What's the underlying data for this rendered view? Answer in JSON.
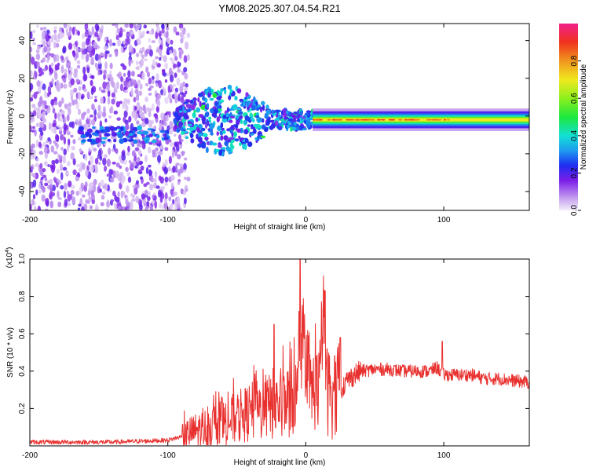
{
  "title": "YM08.2025.307.04.54.R21",
  "chart_data": [
    {
      "type": "heatmap",
      "xlabel": "Height of straight line (km)",
      "ylabel": "Frequency (Hz)",
      "xlim": [
        -200,
        162
      ],
      "ylim": [
        -50,
        49
      ],
      "xticks": [
        -200,
        -100,
        0,
        100
      ],
      "yticks": [
        -40,
        -20,
        0,
        20,
        40
      ],
      "xtick_labels": [
        "-200",
        "-100",
        "0",
        "100"
      ],
      "ytick_labels": [
        "-40",
        "-20",
        "0",
        "20",
        "40"
      ],
      "colorbar": {
        "label": "Normalized spectral amplitude",
        "range": [
          0,
          1
        ],
        "ticks": [
          0.0,
          0.2,
          0.4,
          0.6,
          0.8
        ],
        "tick_labels": [
          "0.0",
          "0.2",
          "0.4",
          "0.6",
          "0.8"
        ]
      },
      "features": [
        {
          "name": "noise region",
          "x_range": [
            -200,
            -85
          ],
          "freq_range": [
            -50,
            49
          ],
          "amplitude": 0.08
        },
        {
          "name": "early trail",
          "x_range": [
            -165,
            -100
          ],
          "freq_center": -10,
          "amplitude": 0.25
        },
        {
          "name": "widening burst",
          "x_range": [
            -95,
            5
          ],
          "freq_center": -2,
          "amplitude": 0.35
        },
        {
          "name": "stable carrier",
          "x_range": [
            5,
            162
          ],
          "freq_center": -2,
          "amplitude": 0.9
        }
      ]
    },
    {
      "type": "line",
      "xlabel": "Height of straight line (km)",
      "ylabel": "SNR (10 * v/v)",
      "scale_label": "(x10",
      "scale_exp": "4",
      "scale_close": ")",
      "xlim": [
        -200,
        162
      ],
      "ylim": [
        0,
        1.0
      ],
      "xticks": [
        -200,
        -100,
        0,
        100
      ],
      "yticks": [
        0.2,
        0.4,
        0.6,
        0.8,
        1.0
      ],
      "xtick_labels": [
        "-200",
        "-100",
        "0",
        "100"
      ],
      "ytick_labels": [
        "0.2",
        "0.4",
        "0.6",
        "0.8",
        "1.0"
      ],
      "line_color": "#e8312f",
      "series": [
        {
          "name": "SNR",
          "x": [
            -200,
            -180,
            -160,
            -140,
            -120,
            -100,
            -90,
            -80,
            -70,
            -60,
            -50,
            -40,
            -30,
            -20,
            -10,
            -5,
            -2,
            0,
            5,
            10,
            13,
            15,
            20,
            25,
            30,
            35,
            40,
            50,
            60,
            70,
            80,
            90,
            95,
            100,
            110,
            120,
            130,
            140,
            150,
            162
          ],
          "y": [
            0.02,
            0.02,
            0.02,
            0.02,
            0.025,
            0.03,
            0.05,
            0.08,
            0.1,
            0.12,
            0.15,
            0.18,
            0.2,
            0.22,
            0.25,
            0.27,
            0.52,
            0.3,
            0.3,
            0.32,
            0.72,
            0.3,
            0.28,
            0.3,
            0.35,
            0.38,
            0.4,
            0.41,
            0.41,
            0.4,
            0.4,
            0.4,
            0.42,
            0.38,
            0.38,
            0.38,
            0.36,
            0.36,
            0.35,
            0.34
          ]
        }
      ],
      "peaks": [
        {
          "x": -23,
          "y": 0.65
        },
        {
          "x": -5,
          "y": 0.72
        },
        {
          "x": -4,
          "y": 1.0
        },
        {
          "x": 14,
          "y": 0.83
        },
        {
          "x": 25,
          "y": 0.58
        },
        {
          "x": 99,
          "y": 0.56
        }
      ]
    }
  ]
}
